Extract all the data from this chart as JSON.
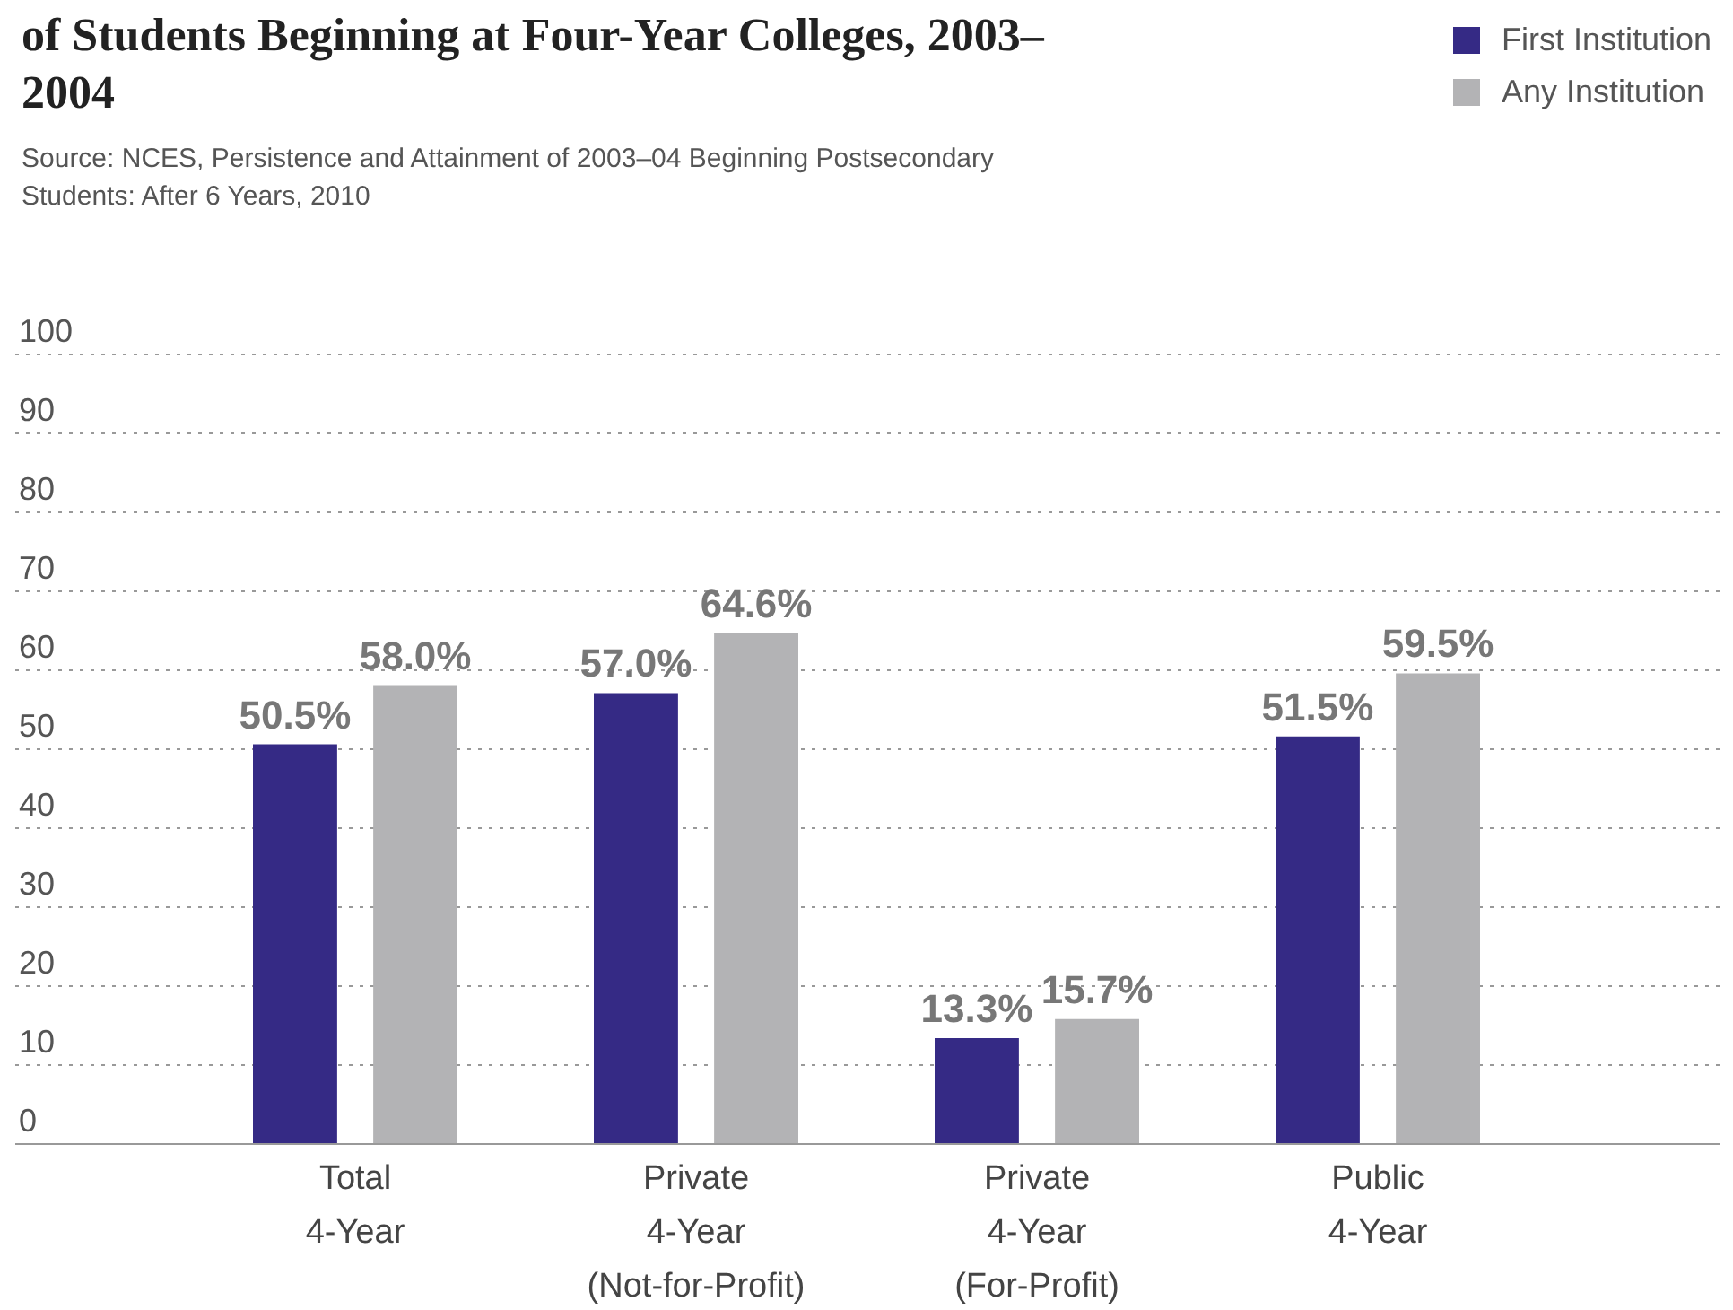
{
  "chart_data": {
    "type": "bar",
    "title": "of Students Beginning at Four-Year Colleges, 2003–2004",
    "annotations": [
      "Source: NCES, Persistence and Attainment of 2003–04 Beginning Postsecondary Students: After 6 Years, 2010"
    ],
    "categories": [
      "Total\n4-Year",
      "Private\n4-Year\n(Not-for-Profit)",
      "Private\n4-Year\n(For-Profit)",
      "Public\n4-Year"
    ],
    "series": [
      {
        "name": "First Institution",
        "color": "#352a85",
        "values": [
          50.5,
          57.0,
          13.3,
          51.5
        ],
        "value_labels": [
          "50.5%",
          "57.0%",
          "13.3%",
          "51.5%"
        ]
      },
      {
        "name": "Any Institution",
        "color": "#b3b3b5",
        "values": [
          58.0,
          64.6,
          15.7,
          59.5
        ],
        "value_labels": [
          "58.0%",
          "64.6%",
          "15.7%",
          "59.5%"
        ]
      }
    ],
    "ylim": [
      0,
      100
    ],
    "yticks": [
      0,
      10,
      20,
      30,
      40,
      50,
      60,
      70,
      80,
      90,
      100
    ],
    "grid": "y",
    "legend": "top right"
  }
}
